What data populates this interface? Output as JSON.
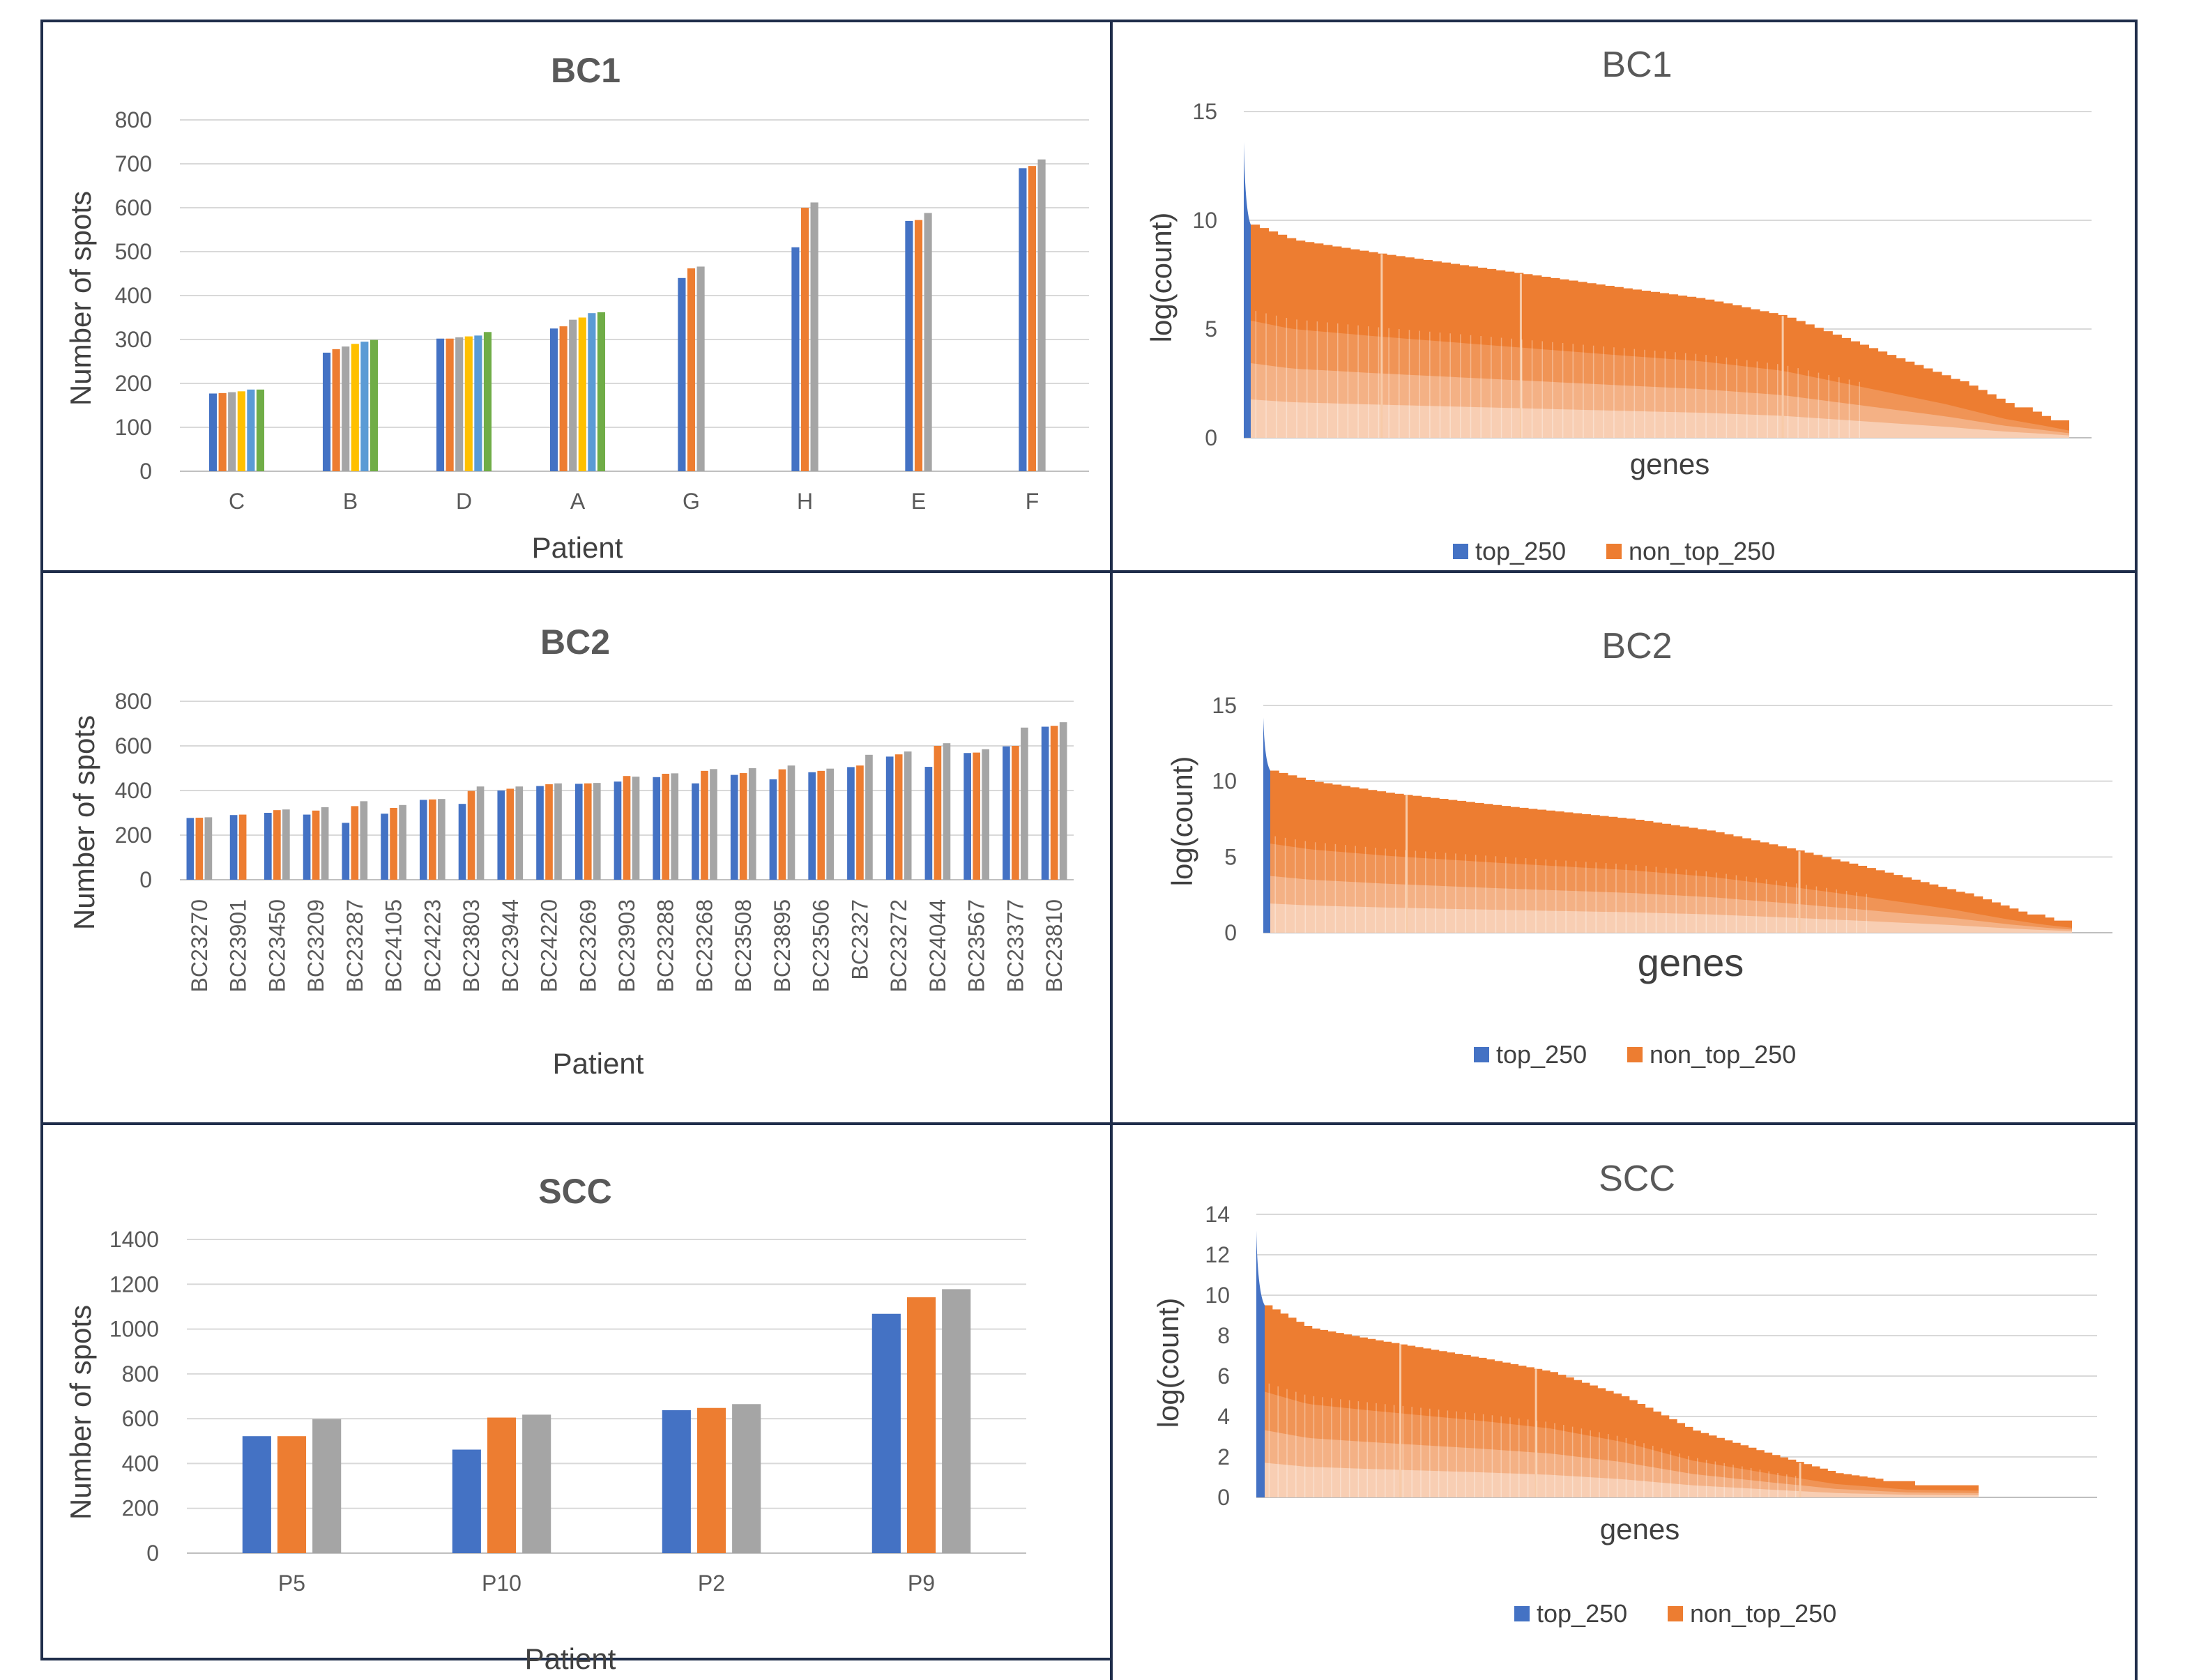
{
  "chart_data": [
    {
      "type": "bar",
      "title": "BC1",
      "xlabel": "Patient",
      "ylabel": "Number of spots",
      "ylim": [
        0,
        800
      ],
      "yticks": [
        0,
        100,
        200,
        300,
        400,
        500,
        600,
        700,
        800
      ],
      "categories": [
        "C",
        "B",
        "D",
        "A",
        "G",
        "H",
        "E",
        "F"
      ],
      "groups": [
        [
          177,
          178,
          180,
          182,
          186,
          186
        ],
        [
          270,
          278,
          284,
          290,
          295,
          299
        ],
        [
          302,
          302,
          305,
          307,
          309,
          317
        ],
        [
          325,
          330,
          345,
          350,
          360,
          362
        ],
        [
          440,
          462,
          466
        ],
        [
          510,
          600,
          612
        ],
        [
          570,
          572,
          588
        ],
        [
          690,
          695,
          710
        ]
      ],
      "series_colors": [
        "#4472c4",
        "#ed7d31",
        "#a5a5a5",
        "#ffc000",
        "#5b9bd5",
        "#70ad47"
      ],
      "grid": true
    },
    {
      "type": "bar",
      "title": "BC2",
      "xlabel": "Patient",
      "ylabel": "Number of spots",
      "ylim": [
        0,
        800
      ],
      "yticks": [
        0,
        200,
        400,
        600,
        800
      ],
      "categories": [
        "BC23270",
        "BC23901",
        "BC23450",
        "BC23209",
        "BC23287",
        "BC24105",
        "BC24223",
        "BC23803",
        "BC23944",
        "BC24220",
        "BC23269",
        "BC23903",
        "BC23288",
        "BC23268",
        "BC23508",
        "BC23895",
        "BC23506",
        "BC2327",
        "BC23272",
        "BC24044",
        "BC23567",
        "BC23377",
        "BC23810"
      ],
      "groups": [
        [
          277,
          278,
          280
        ],
        [
          290,
          292
        ],
        [
          300,
          312,
          315
        ],
        [
          292,
          310,
          325
        ],
        [
          255,
          330,
          352
        ],
        [
          296,
          322,
          335
        ],
        [
          358,
          360,
          362
        ],
        [
          340,
          398,
          418
        ],
        [
          400,
          408,
          418
        ],
        [
          420,
          428,
          432
        ],
        [
          430,
          432,
          434
        ],
        [
          440,
          465,
          462
        ],
        [
          460,
          475,
          477
        ],
        [
          432,
          488,
          496
        ],
        [
          470,
          478,
          500
        ],
        [
          450,
          495,
          512
        ],
        [
          482,
          488,
          498
        ],
        [
          505,
          512,
          560
        ],
        [
          552,
          562,
          575
        ],
        [
          506,
          600,
          612
        ],
        [
          568,
          570,
          585
        ],
        [
          598,
          600,
          682
        ],
        [
          686,
          690,
          706
        ]
      ],
      "series_colors": [
        "#4472c4",
        "#ed7d31",
        "#a5a5a5"
      ],
      "grid": true
    },
    {
      "type": "bar",
      "title": "SCC",
      "xlabel": "Patient",
      "ylabel": "Number of spots",
      "ylim": [
        0,
        1400
      ],
      "yticks": [
        0,
        200,
        400,
        600,
        800,
        1000,
        1200,
        1400
      ],
      "categories": [
        "P5",
        "P10",
        "P2",
        "P9"
      ],
      "groups": [
        [
          522,
          522,
          598
        ],
        [
          462,
          605,
          618
        ],
        [
          638,
          648,
          665
        ],
        [
          1068,
          1142,
          1178
        ]
      ],
      "series_colors": [
        "#4472c4",
        "#ed7d31",
        "#a5a5a5"
      ],
      "grid": true
    },
    {
      "type": "area",
      "title": "BC1",
      "xlabel": "genes",
      "ylabel": "log(count)",
      "ylim": [
        0,
        15
      ],
      "yticks": [
        0,
        5,
        10,
        15
      ],
      "series": [
        {
          "name": "top_250",
          "color": "#4472c4",
          "start": 13.6,
          "end": 9.8
        },
        {
          "name": "non_top_250",
          "color": "#ed7d31",
          "curve": [
            [
              0.0,
              9.8
            ],
            [
              0.05,
              9.1
            ],
            [
              0.15,
              8.5
            ],
            [
              0.3,
              7.7
            ],
            [
              0.45,
              6.9
            ],
            [
              0.55,
              6.4
            ],
            [
              0.65,
              5.6
            ],
            [
              0.75,
              4.2
            ],
            [
              0.85,
              2.8
            ],
            [
              0.92,
              1.6
            ],
            [
              0.97,
              1.0
            ],
            [
              1.0,
              0.6
            ]
          ],
          "steps": [
            0.16,
            0.33,
            0.65
          ]
        }
      ],
      "grid": true
    },
    {
      "type": "area",
      "title": "BC2",
      "xlabel": "genes",
      "ylabel": "log(count)",
      "ylim": [
        0,
        15
      ],
      "yticks": [
        0,
        5,
        10,
        15
      ],
      "series": [
        {
          "name": "top_250",
          "color": "#4472c4",
          "start": 14.2,
          "end": 10.7
        },
        {
          "name": "non_top_250",
          "color": "#ed7d31",
          "curve": [
            [
              0.0,
              10.7
            ],
            [
              0.05,
              10.0
            ],
            [
              0.15,
              9.2
            ],
            [
              0.3,
              8.3
            ],
            [
              0.45,
              7.5
            ],
            [
              0.55,
              6.7
            ],
            [
              0.65,
              5.5
            ],
            [
              0.75,
              4.2
            ],
            [
              0.85,
              2.8
            ],
            [
              0.92,
              1.6
            ],
            [
              0.97,
              0.9
            ],
            [
              1.0,
              0.6
            ]
          ],
          "steps": [
            0.17,
            0.66
          ]
        }
      ],
      "grid": true
    },
    {
      "type": "area",
      "title": "SCC",
      "xlabel": "genes",
      "ylabel": "log(count)",
      "ylim": [
        0,
        14
      ],
      "yticks": [
        0,
        2,
        4,
        6,
        8,
        10,
        12,
        14
      ],
      "series": [
        {
          "name": "top_250",
          "color": "#4472c4",
          "start": 13.2,
          "end": 9.5
        },
        {
          "name": "non_top_250",
          "color": "#ed7d31",
          "curve": [
            [
              0.0,
              9.5
            ],
            [
              0.06,
              8.4
            ],
            [
              0.15,
              7.8
            ],
            [
              0.3,
              6.9
            ],
            [
              0.4,
              6.2
            ],
            [
              0.5,
              5.0
            ],
            [
              0.6,
              3.3
            ],
            [
              0.72,
              2.0
            ],
            [
              0.8,
              1.2
            ],
            [
              0.9,
              0.7
            ],
            [
              1.0,
              0.6
            ]
          ],
          "steps": [
            0.19,
            0.38,
            0.75
          ]
        }
      ],
      "grid": true
    }
  ],
  "legend": {
    "top_250": "top_250",
    "non_top_250": "non_top_250"
  }
}
